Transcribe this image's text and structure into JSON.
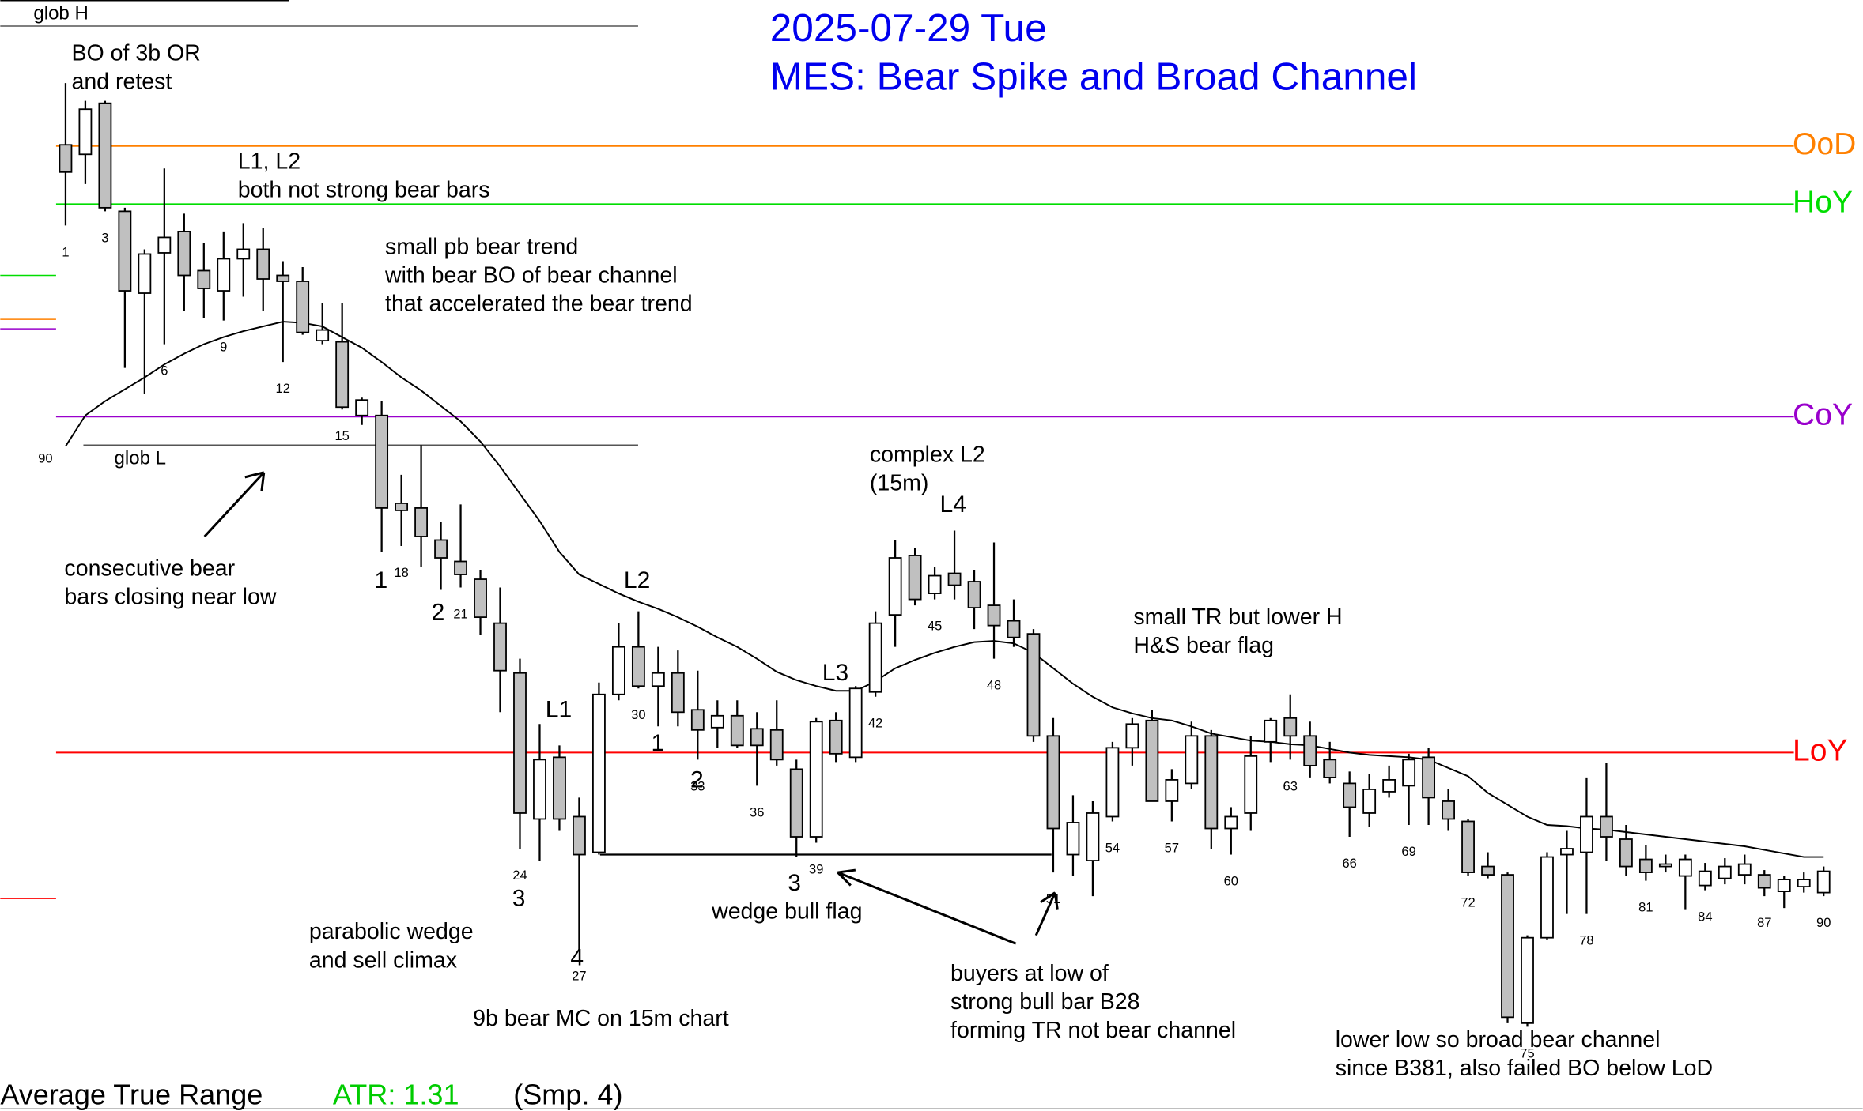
{
  "chart_data": {
    "type": "candlestick",
    "title": "2025-07-29 Tue",
    "subtitle": "MES: Bear Spike and Broad Channel",
    "ylim": [
      0,
      936
    ],
    "categories": [
      "1",
      null,
      "3",
      null,
      null,
      "6",
      null,
      null,
      "9",
      null,
      null,
      "12",
      null,
      null,
      "15",
      null,
      null,
      "18",
      null,
      null,
      "21",
      null,
      null,
      "24",
      null,
      null,
      "27",
      null,
      null,
      "30",
      null,
      null,
      "33",
      null,
      null,
      "36",
      null,
      null,
      "39",
      null,
      null,
      "42",
      null,
      null,
      "45",
      null,
      null,
      "48",
      null,
      null,
      "51",
      null,
      null,
      "54",
      null,
      null,
      "57",
      null,
      null,
      "60",
      null,
      null,
      "63",
      null,
      null,
      "66",
      null,
      null,
      "69",
      null,
      null,
      "72",
      null,
      null,
      "75",
      null,
      null,
      "78",
      null,
      null,
      "81",
      null,
      null,
      "84",
      null,
      null,
      "87",
      null,
      null,
      "90"
    ],
    "open": [
      814,
      806,
      849,
      758,
      689,
      723,
      741,
      708,
      691,
      718,
      726,
      704,
      699,
      649,
      648,
      586,
      586,
      512,
      508,
      481,
      463,
      448,
      411,
      369,
      246,
      298,
      248,
      218,
      351,
      391,
      358,
      369,
      338,
      323,
      333,
      322,
      321,
      288,
      231,
      329,
      298,
      353,
      418,
      468,
      436,
      453,
      446,
      426,
      413,
      402,
      316,
      216,
      211,
      248,
      306,
      329,
      261,
      276,
      316,
      238,
      251,
      311,
      331,
      316,
      296,
      276,
      251,
      269,
      274,
      298,
      261,
      244,
      206,
      199,
      74,
      146,
      216,
      218,
      248,
      229,
      212,
      206,
      198,
      190,
      196,
      199,
      199,
      185,
      189,
      184
    ],
    "high": [
      866,
      851,
      851,
      761,
      726,
      794,
      756,
      731,
      741,
      748,
      744,
      716,
      711,
      681,
      681,
      601,
      598,
      536,
      561,
      496,
      511,
      456,
      441,
      381,
      326,
      308,
      264,
      361,
      411,
      421,
      391,
      388,
      371,
      346,
      346,
      336,
      346,
      296,
      331,
      336,
      358,
      421,
      481,
      474,
      458,
      489,
      456,
      479,
      431,
      406,
      331,
      266,
      261,
      311,
      331,
      338,
      288,
      328,
      321,
      256,
      316,
      331,
      351,
      328,
      311,
      286,
      284,
      291,
      301,
      306,
      271,
      246,
      218,
      201,
      148,
      218,
      236,
      281,
      293,
      241,
      224,
      216,
      216,
      209,
      213,
      216,
      203,
      198,
      201,
      206
    ],
    "low": [
      746,
      781,
      758,
      626,
      604,
      646,
      674,
      668,
      666,
      686,
      674,
      631,
      654,
      646,
      591,
      578,
      471,
      476,
      458,
      439,
      441,
      401,
      336,
      221,
      211,
      236,
      136,
      216,
      346,
      356,
      324,
      324,
      296,
      306,
      306,
      274,
      291,
      214,
      226,
      294,
      294,
      349,
      391,
      426,
      431,
      431,
      406,
      381,
      391,
      311,
      201,
      198,
      181,
      244,
      291,
      261,
      244,
      271,
      221,
      216,
      236,
      294,
      296,
      281,
      276,
      231,
      239,
      264,
      241,
      241,
      236,
      198,
      196,
      74,
      71,
      144,
      166,
      166,
      211,
      198,
      194,
      201,
      170,
      186,
      191,
      191,
      181,
      171,
      184,
      181
    ],
    "close": [
      791,
      844,
      761,
      691,
      722,
      736,
      704,
      693,
      718,
      726,
      701,
      699,
      656,
      658,
      593,
      599,
      508,
      506,
      484,
      466,
      452,
      416,
      371,
      251,
      296,
      246,
      216,
      351,
      391,
      358,
      369,
      336,
      321,
      333,
      308,
      308,
      296,
      231,
      328,
      301,
      356,
      411,
      466,
      431,
      451,
      443,
      424,
      409,
      399,
      316,
      238,
      243,
      251,
      306,
      326,
      261,
      279,
      316,
      238,
      248,
      299,
      329,
      316,
      291,
      281,
      256,
      271,
      279,
      296,
      264,
      246,
      201,
      199,
      79,
      146,
      214,
      221,
      248,
      231,
      206,
      201,
      208,
      212,
      202,
      206,
      208,
      188,
      195,
      195,
      202
    ],
    "ema": [
      560,
      586,
      598,
      608,
      618,
      629,
      638,
      646,
      652,
      657,
      661,
      665,
      664,
      661,
      652,
      643,
      631,
      618,
      607,
      594,
      581,
      564,
      543,
      520,
      497,
      471,
      452,
      444,
      436,
      429,
      423,
      416,
      408,
      399,
      391,
      381,
      370,
      363,
      358,
      354,
      354,
      362,
      373,
      380,
      386,
      391,
      395,
      396,
      394,
      386,
      373,
      360,
      349,
      340,
      335,
      331,
      329,
      324,
      318,
      315,
      312,
      311,
      309,
      308,
      305,
      302,
      300,
      299,
      298,
      296,
      289,
      282,
      268,
      258,
      248,
      241,
      240,
      238,
      237,
      235,
      233,
      231,
      229,
      227,
      225,
      223,
      220,
      217,
      214,
      214
    ],
    "levels": [
      {
        "label": "OoD",
        "value": 813,
        "color": "#ff8000"
      },
      {
        "label": "HoY",
        "value": 764,
        "color": "#00dd00"
      },
      {
        "label": "CoY",
        "value": 585,
        "color": "#9900cc"
      },
      {
        "label": "LoY",
        "value": 302,
        "color": "#ff0000"
      }
    ],
    "reference_lines": [
      {
        "label": "glob H",
        "value": 914
      },
      {
        "label": "glob L",
        "value": 561
      }
    ],
    "prior_bar_label": "90",
    "annotations": [
      [
        "BO of 3b OR",
        "and retest"
      ],
      [
        "L1, L2",
        "both not strong bear bars"
      ],
      [
        "small pb bear trend",
        "with bear BO of bear channel",
        "that accelerated the bear trend"
      ],
      [
        "consecutive bear",
        "bars closing near low"
      ],
      [
        "1"
      ],
      [
        "2"
      ],
      [
        "3"
      ],
      [
        "4"
      ],
      [
        "L1"
      ],
      [
        "L2"
      ],
      [
        "L3"
      ],
      [
        "L4"
      ],
      [
        "complex L2",
        "(15m)"
      ],
      [
        "1"
      ],
      [
        "2"
      ],
      [
        "3"
      ],
      [
        "parabolic wedge",
        "and sell climax"
      ],
      [
        "9b bear MC on 15m chart"
      ],
      [
        "wedge bull flag"
      ],
      [
        "buyers at low of",
        "strong bull bar B28",
        "forming TR not bear channel"
      ],
      [
        "small TR but lower H",
        "H&S bear flag"
      ],
      [
        "lower low so broad bear channel",
        "since B381, also failed BO below LoD"
      ]
    ],
    "indicator": {
      "name": "Average True Range",
      "value_text": "ATR: 1.31",
      "params": "(Smp. 4)"
    }
  }
}
